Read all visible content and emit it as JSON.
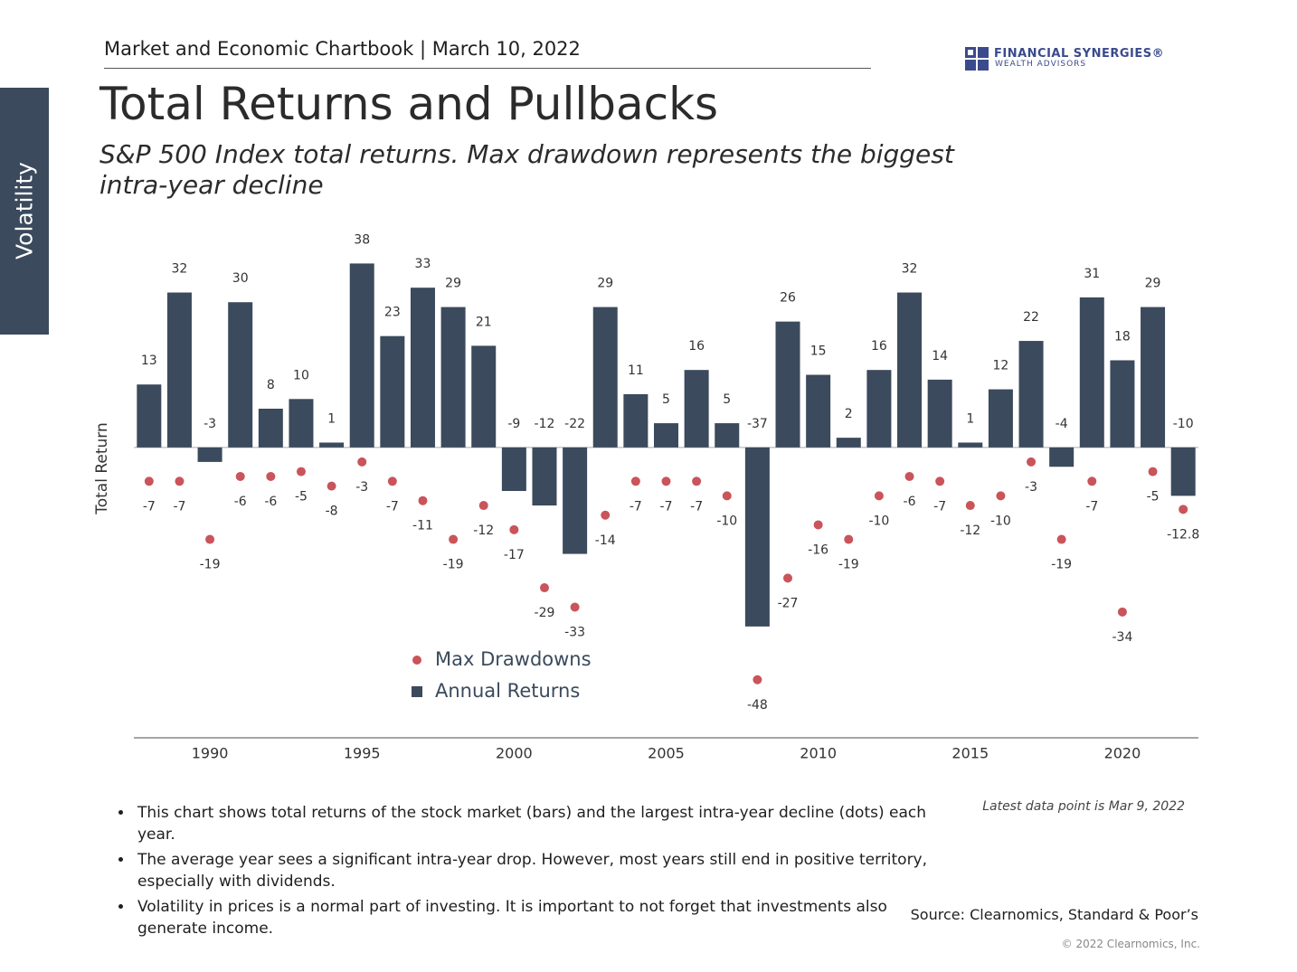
{
  "header": {
    "chartbook": "Market and Economic Chartbook | March 10, 2022",
    "logo_name": "FINANCIAL SYNERGIES®",
    "logo_sub": "WEALTH ADVISORS",
    "section_tab": "Volatility"
  },
  "title": "Total Returns and Pullbacks",
  "subtitle": "S&P 500 Index total returns. Max drawdown represents the biggest intra-year decline",
  "chart_data": {
    "type": "bar",
    "ylabel": "Total Return",
    "x": [
      1988,
      1989,
      1990,
      1991,
      1992,
      1993,
      1994,
      1995,
      1996,
      1997,
      1998,
      1999,
      2000,
      2001,
      2002,
      2003,
      2004,
      2005,
      2006,
      2007,
      2008,
      2009,
      2010,
      2011,
      2012,
      2013,
      2014,
      2015,
      2016,
      2017,
      2018,
      2019,
      2020,
      2021,
      2022
    ],
    "xlim": [
      1987.5,
      2022.5
    ],
    "xticks": [
      1990,
      1995,
      2000,
      2005,
      2010,
      2015,
      2020
    ],
    "ylim": [
      -60,
      42
    ],
    "legend": "bottom-left",
    "series": [
      {
        "name": "Max Drawdowns",
        "type": "scatter",
        "color": "#c9545a",
        "values": [
          -7,
          -7,
          -19,
          -6,
          -6,
          -5,
          -8,
          -3,
          -7,
          -11,
          -19,
          -12,
          -17,
          -29,
          -33,
          -14,
          -7,
          -7,
          -7,
          -10,
          -48,
          -27,
          -16,
          -19,
          -10,
          -6,
          -7,
          -12,
          -10,
          -3,
          -19,
          -7,
          -34,
          -5,
          -12.8
        ]
      },
      {
        "name": "Annual Returns",
        "type": "bar",
        "color": "#3b4a5c",
        "values": [
          13,
          32,
          -3,
          30,
          8,
          10,
          1,
          38,
          23,
          33,
          29,
          21,
          -9,
          -12,
          -22,
          29,
          11,
          5,
          16,
          5,
          -37,
          26,
          15,
          2,
          16,
          32,
          14,
          1,
          12,
          22,
          -4,
          31,
          18,
          29,
          -10
        ]
      }
    ]
  },
  "bullets": [
    "This chart shows total returns of the stock market (bars) and the largest intra-year decline (dots) each year.",
    "The average year sees a significant intra-year drop. However, most years still end in positive territory, especially with dividends.",
    "Volatility in prices is a normal part of investing. It is important to not forget that investments also generate income."
  ],
  "note": "Latest data point is Mar 9, 2022",
  "source": "Source: Clearnomics, Standard & Poor’s",
  "copyright": "© 2022 Clearnomics, Inc."
}
